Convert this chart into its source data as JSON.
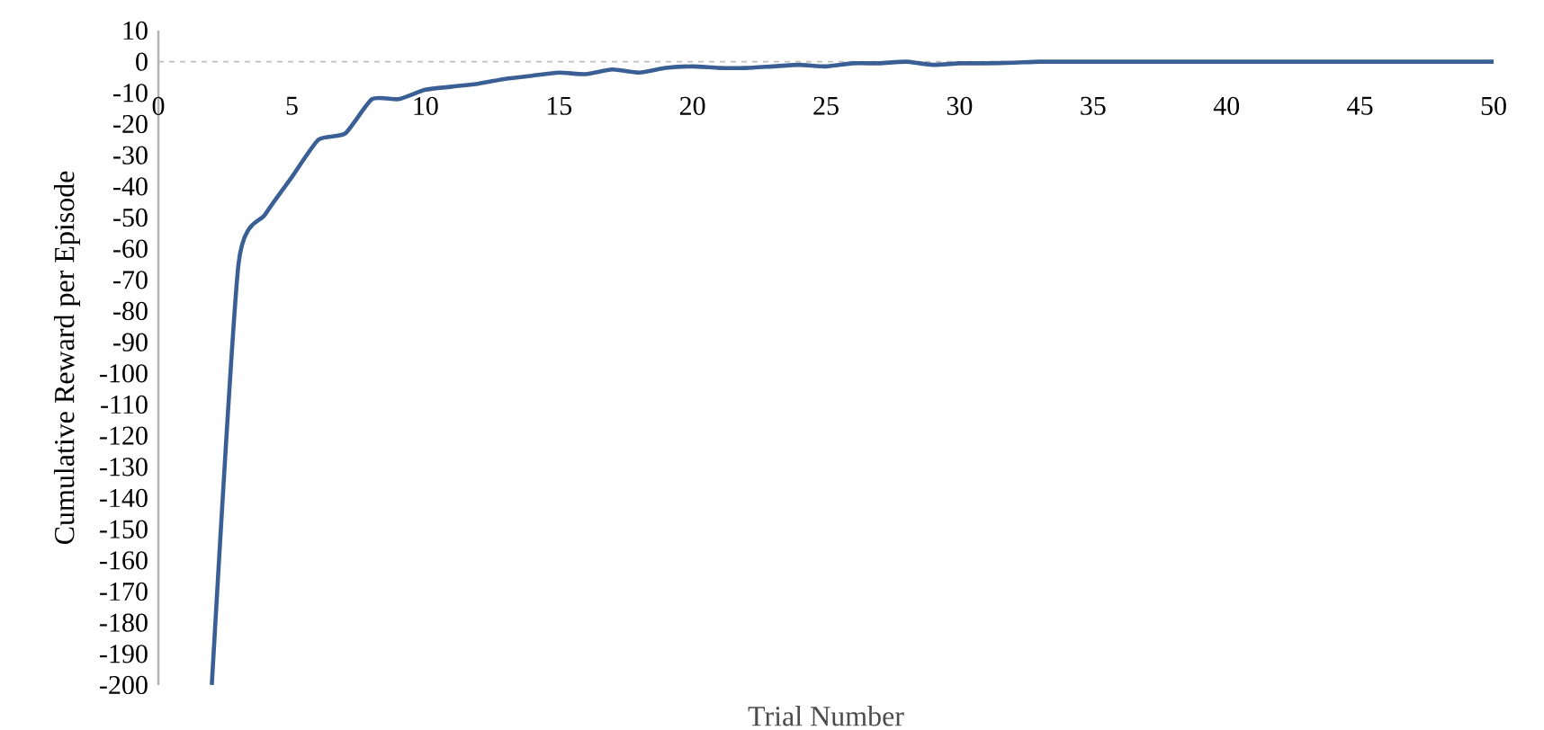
{
  "chart_data": {
    "type": "line",
    "xlabel": "Trial Number",
    "ylabel": "Cumulative Reward  per Episode",
    "x": [
      2,
      3,
      4,
      5,
      6,
      7,
      8,
      9,
      10,
      11,
      12,
      13,
      14,
      15,
      16,
      17,
      18,
      19,
      20,
      21,
      22,
      23,
      24,
      25,
      26,
      27,
      28,
      29,
      30,
      31,
      32,
      33,
      34,
      35,
      36,
      37,
      38,
      39,
      40,
      41,
      42,
      43,
      44,
      45,
      46,
      47,
      48,
      49,
      50
    ],
    "series": [
      {
        "color": "#3a5f94",
        "values": [
          -200,
          -65,
          -49,
          -37,
          -25,
          -23,
          -12,
          -12,
          -9,
          -8,
          -7,
          -5.5,
          -4.5,
          -3.5,
          -4,
          -2.5,
          -3.5,
          -2,
          -1.5,
          -2,
          -2,
          -1.5,
          -1,
          -1.5,
          -0.5,
          -0.5,
          0,
          -1,
          -0.5,
          -0.5,
          -0.3,
          0,
          0,
          0,
          0,
          0,
          0,
          0,
          0,
          0,
          0,
          0,
          0,
          0,
          0,
          0,
          0,
          0,
          0
        ]
      }
    ],
    "xlim": [
      0,
      50
    ],
    "ylim": [
      -200,
      10
    ],
    "xticks": [
      0,
      5,
      10,
      15,
      20,
      25,
      30,
      35,
      40,
      45,
      50
    ],
    "yticks": [
      -200,
      -190,
      -180,
      -170,
      -160,
      -150,
      -140,
      -130,
      -120,
      -110,
      -100,
      -90,
      -80,
      -70,
      -60,
      -50,
      -40,
      -30,
      -20,
      -10,
      0,
      10
    ],
    "ref_lines": [
      {
        "axis": "y",
        "value": 0,
        "color": "#bfbfbf",
        "line_style": "dashed"
      }
    ],
    "marker": "none",
    "line_style": "solid"
  }
}
